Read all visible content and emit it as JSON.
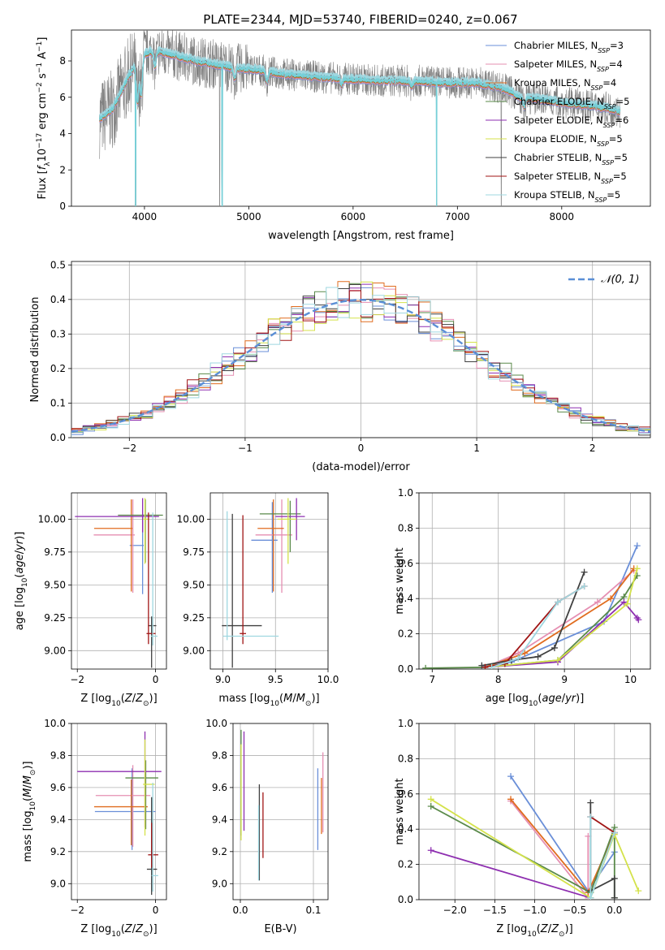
{
  "figure": {
    "title": "PLATE=2344, MJD=53740, FIBERID=0240, z=0.067"
  },
  "models": [
    {
      "name": "Chabrier MILES",
      "nssp": "3",
      "color": "#6a8fd8"
    },
    {
      "name": "Salpeter MILES",
      "nssp": "4",
      "color": "#e58fb2"
    },
    {
      "name": "Kroupa MILES",
      "nssp": "4",
      "color": "#e06c1f"
    },
    {
      "name": "Chabrier ELODIE",
      "nssp": "5",
      "color": "#5a8a4a"
    },
    {
      "name": "Salpeter ELODIE",
      "nssp": "6",
      "color": "#8e2fb0"
    },
    {
      "name": "Kroupa ELODIE",
      "nssp": "5",
      "color": "#d4e24a"
    },
    {
      "name": "Chabrier STELIB",
      "nssp": "5",
      "color": "#404040"
    },
    {
      "name": "Salpeter STELIB",
      "nssp": "5",
      "color": "#a01515"
    },
    {
      "name": "Kroupa STELIB",
      "nssp": "5",
      "color": "#9fd7e0"
    }
  ],
  "chart_data": [
    {
      "id": "spectrum",
      "type": "line",
      "title": "PLATE=2344, MJD=53740, FIBERID=0240, z=0.067",
      "xlabel": "wavelength [Angstrom, rest frame]",
      "ylabel": "Flux [f_λ 10^-17 erg cm^-2 s^-1 A^-1]",
      "xlim": [
        3300,
        8850
      ],
      "ylim": [
        0,
        9.7
      ],
      "xticks": [
        4000,
        5000,
        6000,
        7000,
        8000
      ],
      "yticks": [
        0,
        2,
        4,
        6,
        8
      ],
      "data_color": "#808080",
      "model_color": "#77d0d8",
      "continuum": [
        [
          3570,
          4.8
        ],
        [
          3700,
          5.4
        ],
        [
          3850,
          7.2
        ],
        [
          4000,
          8.4
        ],
        [
          4100,
          8.6
        ],
        [
          4300,
          8.3
        ],
        [
          4500,
          8.0
        ],
        [
          4700,
          7.8
        ],
        [
          4900,
          7.6
        ],
        [
          5100,
          7.5
        ],
        [
          5300,
          7.3
        ],
        [
          5500,
          7.2
        ],
        [
          5700,
          7.1
        ],
        [
          6000,
          7.0
        ],
        [
          6300,
          6.9
        ],
        [
          6600,
          6.9
        ],
        [
          6900,
          6.8
        ],
        [
          7200,
          6.8
        ],
        [
          7450,
          6.5
        ],
        [
          7600,
          6.0
        ],
        [
          7800,
          5.9
        ],
        [
          8000,
          5.7
        ],
        [
          8200,
          5.6
        ],
        [
          8450,
          5.4
        ],
        [
          8560,
          5.2
        ]
      ],
      "absorption": [
        [
          3933,
          5.8
        ],
        [
          3968,
          6.2
        ],
        [
          4101,
          7.7
        ],
        [
          4861,
          7.0
        ],
        [
          5175,
          6.9
        ],
        [
          5890,
          6.7
        ],
        [
          6563,
          6.6
        ],
        [
          7640,
          5.5
        ]
      ],
      "grey_edges": [
        [
          4720,
          0
        ],
        [
          7420,
          0
        ]
      ],
      "model_spikes": [
        [
          3915,
          0
        ],
        [
          4745,
          0
        ],
        [
          6800,
          0
        ]
      ]
    },
    {
      "id": "residuals",
      "type": "histogram",
      "xlabel": "(data-model)/error",
      "ylabel": "Normed distribution",
      "xlim": [
        -2.5,
        2.5
      ],
      "ylim": [
        0,
        0.51
      ],
      "xticks": [
        -2,
        -1,
        0,
        1,
        2
      ],
      "yticks": [
        0.0,
        0.1,
        0.2,
        0.3,
        0.4,
        0.5
      ],
      "bin_width": 0.1,
      "legend": {
        "label": "𝒩(0, 1)",
        "placement": "upper right"
      },
      "normal_curve": {
        "mean": 0,
        "sigma": 1,
        "color": "#5b8fd6"
      }
    },
    {
      "id": "age-vs-Z",
      "type": "errorbar",
      "xlabel": "Z [log10(Z/Z⊙)]",
      "ylabel": "age  [log10(age/yr)]",
      "xlim": [
        -2.15,
        0.28
      ],
      "ylim": [
        8.86,
        10.2
      ],
      "xticks": [
        -2,
        0
      ],
      "yticks": [
        9.0,
        9.25,
        9.5,
        9.75,
        10.0
      ],
      "points": [
        {
          "model": 0,
          "x": -0.33,
          "xerr": [
            0.33,
            0.03
          ],
          "y": 9.8,
          "yerr": [
            0.37,
            0.24
          ]
        },
        {
          "model": 1,
          "x": -0.58,
          "xerr": [
            1.0,
            0.05
          ],
          "y": 9.88,
          "yerr": [
            0.44,
            0.27
          ]
        },
        {
          "model": 2,
          "x": -0.62,
          "xerr": [
            0.95,
            0.03
          ],
          "y": 9.93,
          "yerr": [
            0.48,
            0.22
          ]
        },
        {
          "model": 3,
          "x": -0.26,
          "xerr": [
            0.7,
            0.45
          ],
          "y": 10.03,
          "yerr": [
            0.36,
            0.12
          ]
        },
        {
          "model": 4,
          "x": -0.33,
          "xerr": [
            1.73,
            0.42
          ],
          "y": 10.02,
          "yerr": [
            0.12,
            0.14
          ]
        },
        {
          "model": 5,
          "x": -0.27,
          "xerr": [
            0.05,
            0.09
          ],
          "y": 10.0,
          "yerr": [
            0.34,
            0.16
          ]
        },
        {
          "model": 6,
          "x": -0.1,
          "xerr": [
            0.09,
            0.12
          ],
          "y": 9.19,
          "yerr": [
            0.32,
            0.07
          ]
        },
        {
          "model": 7,
          "x": -0.18,
          "xerr": [
            0.05,
            0.18
          ],
          "y": 9.13,
          "yerr": [
            0.08,
            0.92
          ]
        },
        {
          "model": 8,
          "x": -0.07,
          "xerr": [
            0.05,
            0.12
          ],
          "y": 9.11,
          "yerr": [
            0.07,
            0.94
          ]
        }
      ]
    },
    {
      "id": "age-vs-mass",
      "type": "errorbar",
      "xlabel": "mass [log10(M/M⊙)]",
      "ylabel": "",
      "xlim": [
        8.88,
        10.0
      ],
      "ylim": [
        8.86,
        10.2
      ],
      "xticks": [
        9.0,
        9.5,
        10.0
      ],
      "yticks": [
        9.0,
        9.25,
        9.5,
        9.75,
        10.0
      ],
      "points": [
        {
          "model": 0,
          "x": 9.47,
          "xerr": [
            0.2,
            0.05
          ],
          "y": 9.84,
          "yerr": [
            0.4,
            0.29
          ]
        },
        {
          "model": 1,
          "x": 9.56,
          "xerr": [
            0.25,
            0.1
          ],
          "y": 9.88,
          "yerr": [
            0.44,
            0.27
          ]
        },
        {
          "model": 2,
          "x": 9.48,
          "xerr": [
            0.15,
            0.1
          ],
          "y": 9.93,
          "yerr": [
            0.48,
            0.22
          ]
        },
        {
          "model": 3,
          "x": 9.64,
          "xerr": [
            0.29,
            0.1
          ],
          "y": 10.04,
          "yerr": [
            0.29,
            0.1
          ]
        },
        {
          "model": 4,
          "x": 9.7,
          "xerr": [
            0.2,
            0.08
          ],
          "y": 10.02,
          "yerr": [
            0.18,
            0.14
          ]
        },
        {
          "model": 5,
          "x": 9.62,
          "xerr": [
            0.1,
            0.08
          ],
          "y": 10.0,
          "yerr": [
            0.34,
            0.16
          ]
        },
        {
          "model": 6,
          "x": 9.09,
          "xerr": [
            0.1,
            0.28
          ],
          "y": 9.19,
          "yerr": [
            0.32,
            0.85
          ]
        },
        {
          "model": 7,
          "x": 9.19,
          "xerr": [
            0.03,
            0.03
          ],
          "y": 9.13,
          "yerr": [
            0.08,
            0.9
          ]
        },
        {
          "model": 8,
          "x": 9.04,
          "xerr": [
            0.04,
            0.49
          ],
          "y": 9.11,
          "yerr": [
            0.03,
            0.95
          ]
        }
      ]
    },
    {
      "id": "massweight-vs-age",
      "type": "line",
      "xlabel": "age  [log10(age/yr)]",
      "ylabel": "mass weight",
      "xlim": [
        6.8,
        10.3
      ],
      "ylim": [
        0,
        1.0
      ],
      "xticks": [
        7,
        8,
        9,
        10
      ],
      "yticks": [
        0.0,
        0.2,
        0.4,
        0.6,
        0.8,
        1.0
      ],
      "series": [
        {
          "model": 0,
          "x": [
            7.75,
            8.2,
            9.6,
            10.1
          ],
          "y": [
            0.01,
            0.04,
            0.27,
            0.7
          ]
        },
        {
          "model": 1,
          "x": [
            7.8,
            8.3,
            9.5,
            10.05
          ],
          "y": [
            0.01,
            0.09,
            0.38,
            0.56
          ]
        },
        {
          "model": 2,
          "x": [
            7.8,
            8.4,
            9.7,
            10.05
          ],
          "y": [
            0.01,
            0.09,
            0.4,
            0.57
          ]
        },
        {
          "model": 3,
          "x": [
            6.9,
            7.8,
            8.9,
            9.9,
            10.1
          ],
          "y": [
            0.005,
            0.01,
            0.05,
            0.41,
            0.53
          ]
        },
        {
          "model": 4,
          "x": [
            7.8,
            8.9,
            9.9,
            10.1,
            10.12
          ],
          "y": [
            0.01,
            0.04,
            0.38,
            0.29,
            0.28
          ]
        },
        {
          "model": 5,
          "x": [
            7.8,
            8.9,
            9.95,
            10.1
          ],
          "y": [
            0.01,
            0.05,
            0.37,
            0.57
          ]
        },
        {
          "model": 6,
          "x": [
            7.75,
            8.2,
            8.6,
            8.85,
            9.3
          ],
          "y": [
            0.02,
            0.05,
            0.07,
            0.12,
            0.55
          ]
        },
        {
          "model": 7,
          "x": [
            7.8,
            8.1,
            8.9,
            9.3
          ],
          "y": [
            0.01,
            0.03,
            0.38,
            0.47
          ]
        },
        {
          "model": 8,
          "x": [
            7.9,
            8.3,
            8.9,
            9.3
          ],
          "y": [
            0.01,
            0.06,
            0.38,
            0.47
          ]
        }
      ]
    },
    {
      "id": "mass-vs-Z",
      "type": "errorbar",
      "xlabel": "Z [log10(Z/Z⊙)]",
      "ylabel": "mass [log10(M/M⊙)]",
      "xlim": [
        -2.15,
        0.28
      ],
      "ylim": [
        8.9,
        10.0
      ],
      "xticks": [
        -2,
        0
      ],
      "yticks": [
        9.0,
        9.2,
        9.4,
        9.6,
        9.8,
        10.0
      ],
      "points": [
        {
          "model": 0,
          "x": -0.6,
          "xerr": [
            0.95,
            0.6
          ],
          "y": 9.45,
          "yerr": [
            0.24,
            0.27
          ]
        },
        {
          "model": 1,
          "x": -0.58,
          "xerr": [
            0.95,
            0.45
          ],
          "y": 9.55,
          "yerr": [
            0.32,
            0.19
          ]
        },
        {
          "model": 2,
          "x": -0.62,
          "xerr": [
            0.95,
            0.42
          ],
          "y": 9.48,
          "yerr": [
            0.24,
            0.17
          ]
        },
        {
          "model": 3,
          "x": -0.25,
          "xerr": [
            0.52,
            0.32
          ],
          "y": 9.66,
          "yerr": [
            0.32,
            0.11
          ]
        },
        {
          "model": 4,
          "x": -0.27,
          "xerr": [
            1.73,
            0.42
          ],
          "y": 9.7,
          "yerr": [
            0.35,
            0.25
          ]
        },
        {
          "model": 5,
          "x": -0.27,
          "xerr": [
            0.05,
            0.25
          ],
          "y": 9.62,
          "yerr": [
            0.32,
            0.28
          ]
        },
        {
          "model": 6,
          "x": -0.1,
          "xerr": [
            0.12,
            0.14
          ],
          "y": 9.09,
          "yerr": [
            0.16,
            0.45
          ]
        },
        {
          "model": 7,
          "x": -0.1,
          "xerr": [
            0.09,
            0.17
          ],
          "y": 9.18,
          "yerr": [
            0.08,
            0.2
          ]
        },
        {
          "model": 8,
          "x": -0.07,
          "xerr": [
            0.03,
            0.14
          ],
          "y": 9.05,
          "yerr": [
            0.1,
            0.58
          ]
        }
      ]
    },
    {
      "id": "mass-vs-EBV",
      "type": "errorbar",
      "xlabel": "E(B-V)",
      "ylabel": "",
      "xlim": [
        -0.01,
        0.12
      ],
      "ylim": [
        8.9,
        10.0
      ],
      "xticks": [
        0.0,
        0.1
      ],
      "yticks": [
        9.0,
        9.2,
        9.4,
        9.6,
        9.8,
        10.0
      ],
      "points": [
        {
          "model": 0,
          "x": 0.106,
          "xerr": [
            0,
            0
          ],
          "y": 9.46,
          "yerr": [
            0.25,
            0.26
          ]
        },
        {
          "model": 1,
          "x": 0.113,
          "xerr": [
            0,
            0
          ],
          "y": 9.56,
          "yerr": [
            0.24,
            0.26
          ]
        },
        {
          "model": 2,
          "x": 0.111,
          "xerr": [
            0,
            0
          ],
          "y": 9.48,
          "yerr": [
            0.17,
            0.18
          ]
        },
        {
          "model": 3,
          "x": 0.001,
          "xerr": [
            0,
            0
          ],
          "y": 9.66,
          "yerr": [
            0.36,
            0.3
          ]
        },
        {
          "model": 4,
          "x": 0.005,
          "xerr": [
            0,
            0
          ],
          "y": 9.7,
          "yerr": [
            0.37,
            0.25
          ]
        },
        {
          "model": 5,
          "x": 0.001,
          "xerr": [
            0,
            0
          ],
          "y": 9.55,
          "yerr": [
            0.28,
            0.32
          ]
        },
        {
          "model": 6,
          "x": 0.026,
          "xerr": [
            0,
            0
          ],
          "y": 9.34,
          "yerr": [
            0.32,
            0.28
          ]
        },
        {
          "model": 7,
          "x": 0.031,
          "xerr": [
            0,
            0
          ],
          "y": 9.36,
          "yerr": [
            0.2,
            0.21
          ]
        },
        {
          "model": 8,
          "x": 0.025,
          "xerr": [
            0,
            0
          ],
          "y": 9.25,
          "yerr": [
            0.23,
            0.24
          ]
        }
      ]
    },
    {
      "id": "massweight-vs-Z",
      "type": "line",
      "xlabel": "Z [log10(Z/Z⊙)]",
      "ylabel": "mass weight",
      "xlim": [
        -2.45,
        0.45
      ],
      "ylim": [
        0,
        1.0
      ],
      "xticks": [
        -2.0,
        -1.5,
        -1.0,
        -0.5,
        0.0
      ],
      "yticks": [
        0.0,
        0.2,
        0.4,
        0.6,
        0.8,
        1.0
      ],
      "series": [
        {
          "model": 0,
          "x": [
            -1.3,
            -0.33,
            0.0
          ],
          "y": [
            0.7,
            0.05,
            0.27
          ]
        },
        {
          "model": 1,
          "x": [
            -1.3,
            -0.33,
            -0.33
          ],
          "y": [
            0.56,
            0.01,
            0.36
          ]
        },
        {
          "model": 2,
          "x": [
            -1.3,
            -0.33,
            0.0
          ],
          "y": [
            0.57,
            0.04,
            0.38
          ]
        },
        {
          "model": 3,
          "x": [
            -2.3,
            -0.3,
            0.0,
            0.0
          ],
          "y": [
            0.53,
            0.04,
            0.41,
            0.01
          ]
        },
        {
          "model": 4,
          "x": [
            -2.3,
            -0.3
          ],
          "y": [
            0.28,
            0.01
          ]
        },
        {
          "model": 5,
          "x": [
            -2.3,
            -0.3,
            0.0,
            0.3
          ],
          "y": [
            0.57,
            0.01,
            0.37,
            0.05
          ]
        },
        {
          "model": 6,
          "x": [
            -0.3,
            -0.3,
            0.0,
            0.0
          ],
          "y": [
            0.55,
            0.05,
            0.12,
            0.01
          ]
        },
        {
          "model": 7,
          "x": [
            -0.3,
            0.0
          ],
          "y": [
            0.47,
            0.38
          ]
        },
        {
          "model": 8,
          "x": [
            -0.3,
            -0.3,
            0.0
          ],
          "y": [
            0.47,
            0.01,
            0.38
          ]
        }
      ]
    }
  ]
}
